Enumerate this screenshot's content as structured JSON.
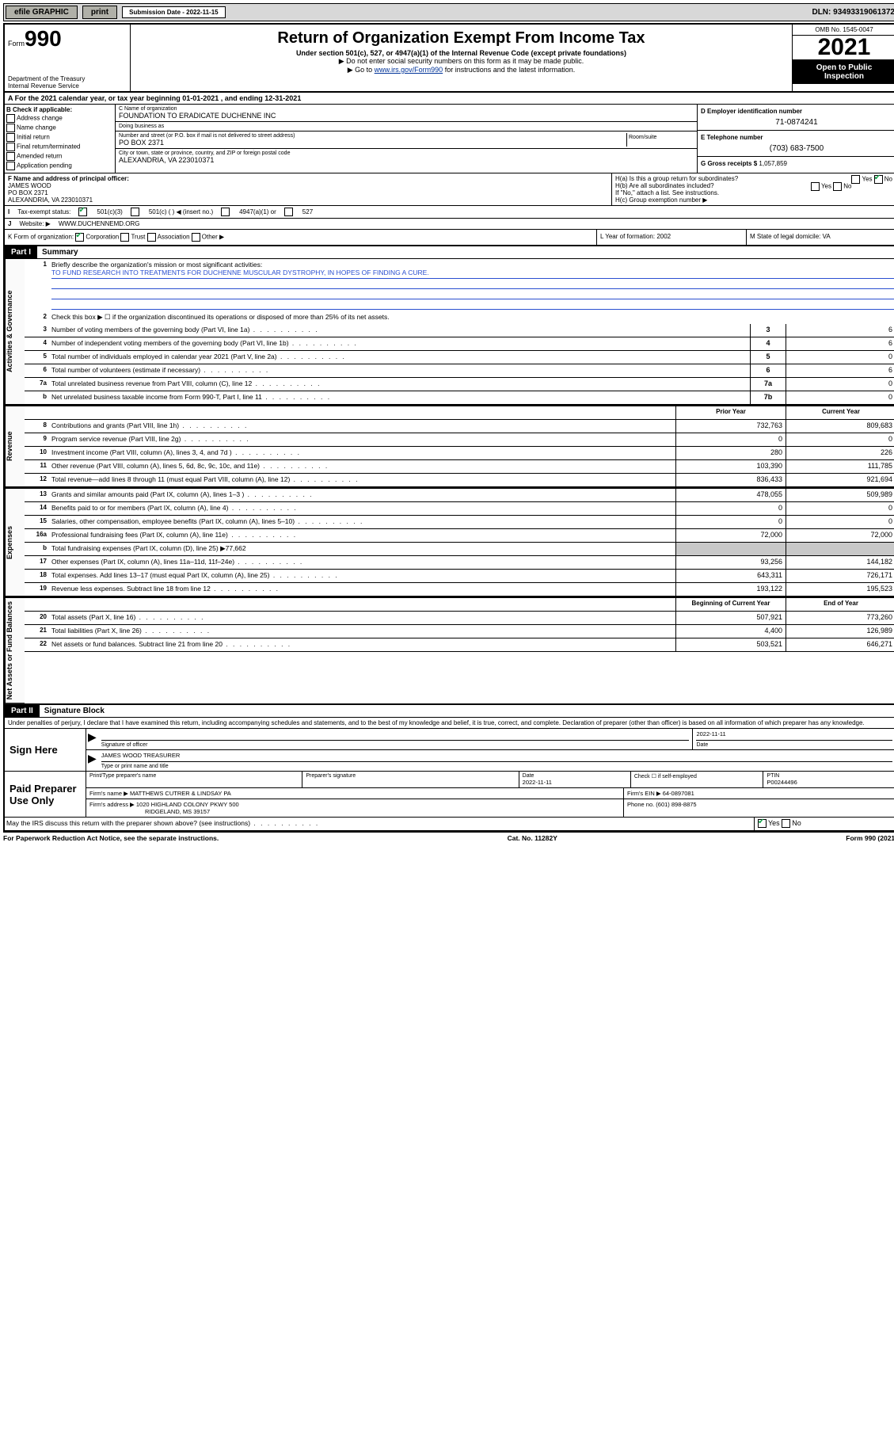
{
  "topbar": {
    "efile": "efile GRAPHIC",
    "print": "print",
    "subdate_label": "Submission Date - 2022-11-15",
    "dln": "DLN: 93493319061372"
  },
  "header": {
    "form_word": "Form",
    "form_no": "990",
    "dept": "Department of the Treasury",
    "irs": "Internal Revenue Service",
    "title": "Return of Organization Exempt From Income Tax",
    "sub": "Under section 501(c), 527, or 4947(a)(1) of the Internal Revenue Code (except private foundations)",
    "arrow1": "▶ Do not enter social security numbers on this form as it may be made public.",
    "arrow2_pre": "▶ Go to ",
    "arrow2_link": "www.irs.gov/Form990",
    "arrow2_post": " for instructions and the latest information.",
    "omb": "OMB No. 1545-0047",
    "year": "2021",
    "open1": "Open to Public",
    "open2": "Inspection"
  },
  "rowA": "A For the 2021 calendar year, or tax year beginning 01-01-2021   , and ending 12-31-2021",
  "B": {
    "title": "B Check if applicable:",
    "opts": [
      "Address change",
      "Name change",
      "Initial return",
      "Final return/terminated",
      "Amended return",
      "Application pending"
    ]
  },
  "C": {
    "name_lbl": "C Name of organization",
    "name": "FOUNDATION TO ERADICATE DUCHENNE INC",
    "dba_lbl": "Doing business as",
    "dba": "",
    "addr_lbl": "Number and street (or P.O. box if mail is not delivered to street address)",
    "room_lbl": "Room/suite",
    "addr": "PO BOX 2371",
    "city_lbl": "City or town, state or province, country, and ZIP or foreign postal code",
    "city": "ALEXANDRIA, VA  223010371"
  },
  "D": {
    "lbl": "D Employer identification number",
    "val": "71-0874241"
  },
  "E": {
    "lbl": "E Telephone number",
    "val": "(703) 683-7500"
  },
  "G": {
    "lbl": "G Gross receipts $",
    "val": "1,057,859"
  },
  "F": {
    "lbl": "F  Name and address of principal officer:",
    "name": "JAMES WOOD",
    "addr1": "PO BOX 2371",
    "addr2": "ALEXANDRIA, VA  223010371"
  },
  "H": {
    "a": "H(a)  Is this a group return for subordinates?",
    "a_yes": "Yes",
    "a_no": "No",
    "b": "H(b)  Are all subordinates included?",
    "b_note": "If \"No,\" attach a list. See instructions.",
    "c": "H(c)  Group exemption number ▶"
  },
  "I": {
    "lbl": "Tax-exempt status:",
    "o1": "501(c)(3)",
    "o2": "501(c) (  ) ◀ (insert no.)",
    "o3": "4947(a)(1) or",
    "o4": "527"
  },
  "J": {
    "lbl": "Website: ▶",
    "val": "WWW.DUCHENNEMD.ORG"
  },
  "K": {
    "lbl": "K Form of organization:",
    "o1": "Corporation",
    "o2": "Trust",
    "o3": "Association",
    "o4": "Other ▶"
  },
  "L": {
    "lbl": "L Year of formation:",
    "val": "2002"
  },
  "M": {
    "lbl": "M State of legal domicile:",
    "val": "VA"
  },
  "part1": {
    "hdr": "Part I",
    "title": "Summary",
    "tab_act": "Activities & Governance",
    "tab_rev": "Revenue",
    "tab_exp": "Expenses",
    "tab_net": "Net Assets or Fund Balances",
    "l1_lbl": "Briefly describe the organization's mission or most significant activities:",
    "l1_val": "TO FUND RESEARCH INTO TREATMENTS FOR DUCHENNE MUSCULAR DYSTROPHY, IN HOPES OF FINDING A CURE.",
    "l2": "Check this box ▶ ☐  if the organization discontinued its operations or disposed of more than 25% of its net assets.",
    "lines_gov": [
      {
        "n": "3",
        "t": "Number of voting members of the governing body (Part VI, line 1a)",
        "k": "3",
        "v": "6"
      },
      {
        "n": "4",
        "t": "Number of independent voting members of the governing body (Part VI, line 1b)",
        "k": "4",
        "v": "6"
      },
      {
        "n": "5",
        "t": "Total number of individuals employed in calendar year 2021 (Part V, line 2a)",
        "k": "5",
        "v": "0"
      },
      {
        "n": "6",
        "t": "Total number of volunteers (estimate if necessary)",
        "k": "6",
        "v": "6"
      },
      {
        "n": "7a",
        "t": "Total unrelated business revenue from Part VIII, column (C), line 12",
        "k": "7a",
        "v": "0"
      },
      {
        "n": "b",
        "t": "Net unrelated business taxable income from Form 990-T, Part I, line 11",
        "k": "7b",
        "v": "0"
      }
    ],
    "col_prior": "Prior Year",
    "col_curr": "Current Year",
    "lines_rev": [
      {
        "n": "8",
        "t": "Contributions and grants (Part VIII, line 1h)",
        "p": "732,763",
        "c": "809,683"
      },
      {
        "n": "9",
        "t": "Program service revenue (Part VIII, line 2g)",
        "p": "0",
        "c": "0"
      },
      {
        "n": "10",
        "t": "Investment income (Part VIII, column (A), lines 3, 4, and 7d )",
        "p": "280",
        "c": "226"
      },
      {
        "n": "11",
        "t": "Other revenue (Part VIII, column (A), lines 5, 6d, 8c, 9c, 10c, and 11e)",
        "p": "103,390",
        "c": "111,785"
      },
      {
        "n": "12",
        "t": "Total revenue—add lines 8 through 11 (must equal Part VIII, column (A), line 12)",
        "p": "836,433",
        "c": "921,694"
      }
    ],
    "lines_exp": [
      {
        "n": "13",
        "t": "Grants and similar amounts paid (Part IX, column (A), lines 1–3 )",
        "p": "478,055",
        "c": "509,989"
      },
      {
        "n": "14",
        "t": "Benefits paid to or for members (Part IX, column (A), line 4)",
        "p": "0",
        "c": "0"
      },
      {
        "n": "15",
        "t": "Salaries, other compensation, employee benefits (Part IX, column (A), lines 5–10)",
        "p": "0",
        "c": "0"
      },
      {
        "n": "16a",
        "t": "Professional fundraising fees (Part IX, column (A), line 11e)",
        "p": "72,000",
        "c": "72,000"
      }
    ],
    "line_b": {
      "n": "b",
      "t": "Total fundraising expenses (Part IX, column (D), line 25) ▶77,662"
    },
    "lines_exp2": [
      {
        "n": "17",
        "t": "Other expenses (Part IX, column (A), lines 11a–11d, 11f–24e)",
        "p": "93,256",
        "c": "144,182"
      },
      {
        "n": "18",
        "t": "Total expenses. Add lines 13–17 (must equal Part IX, column (A), line 25)",
        "p": "643,311",
        "c": "726,171"
      },
      {
        "n": "19",
        "t": "Revenue less expenses. Subtract line 18 from line 12",
        "p": "193,122",
        "c": "195,523"
      }
    ],
    "col_beg": "Beginning of Current Year",
    "col_end": "End of Year",
    "lines_net": [
      {
        "n": "20",
        "t": "Total assets (Part X, line 16)",
        "p": "507,921",
        "c": "773,260"
      },
      {
        "n": "21",
        "t": "Total liabilities (Part X, line 26)",
        "p": "4,400",
        "c": "126,989"
      },
      {
        "n": "22",
        "t": "Net assets or fund balances. Subtract line 21 from line 20",
        "p": "503,521",
        "c": "646,271"
      }
    ]
  },
  "part2": {
    "hdr": "Part II",
    "title": "Signature Block",
    "decl": "Under penalties of perjury, I declare that I have examined this return, including accompanying schedules and statements, and to the best of my knowledge and belief, it is true, correct, and complete. Declaration of preparer (other than officer) is based on all information of which preparer has any knowledge.",
    "sign_here": "Sign Here",
    "sig_officer": "Signature of officer",
    "sig_date": "2022-11-11",
    "date_lbl": "Date",
    "officer_name": "JAMES WOOD  TREASURER",
    "name_title_lbl": "Type or print name and title",
    "paid": "Paid Preparer Use Only",
    "prep_name_lbl": "Print/Type preparer's name",
    "prep_sig_lbl": "Preparer's signature",
    "prep_date_lbl": "Date",
    "prep_date": "2022-11-11",
    "check_self": "Check ☐ if self-employed",
    "ptin_lbl": "PTIN",
    "ptin": "P00244496",
    "firm_name_lbl": "Firm's name    ▶",
    "firm_name": "MATTHEWS CUTRER & LINDSAY PA",
    "firm_ein_lbl": "Firm's EIN ▶",
    "firm_ein": "64-0897081",
    "firm_addr_lbl": "Firm's address ▶",
    "firm_addr": "1020 HIGHLAND COLONY PKWY 500",
    "firm_addr2": "RIDGELAND, MS  39157",
    "phone_lbl": "Phone no.",
    "phone": "(601) 898-8875",
    "may_irs": "May the IRS discuss this return with the preparer shown above? (see instructions)",
    "yes": "Yes",
    "no": "No"
  },
  "footer": {
    "left": "For Paperwork Reduction Act Notice, see the separate instructions.",
    "mid": "Cat. No. 11282Y",
    "right": "Form 990 (2021)"
  }
}
